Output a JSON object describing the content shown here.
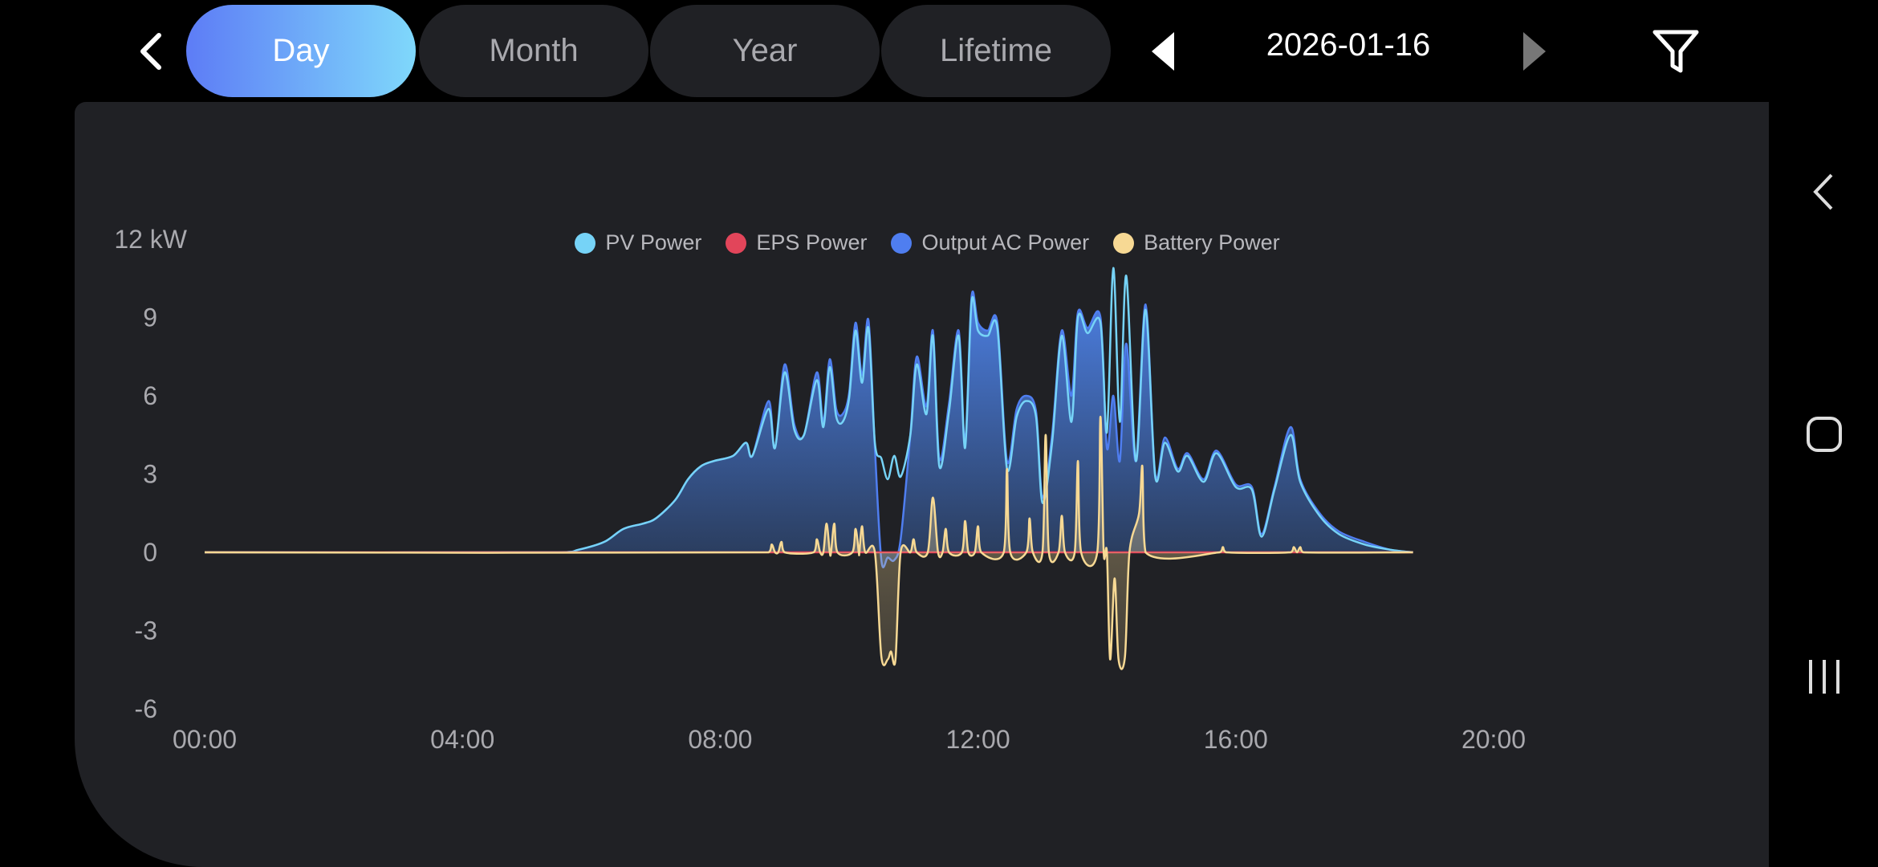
{
  "header": {
    "back_icon": "chevron-left-icon",
    "tabs": [
      {
        "label": "Day",
        "active": true
      },
      {
        "label": "Month",
        "active": false
      },
      {
        "label": "Year",
        "active": false
      },
      {
        "label": "Lifetime",
        "active": false
      }
    ],
    "date": "2026-01-16",
    "prev_icon": "triangle-left-icon",
    "next_icon": "triangle-right-icon",
    "filter_icon": "filter-icon"
  },
  "legend": [
    {
      "label": "PV Power",
      "color": "#76d3f7"
    },
    {
      "label": "EPS Power",
      "color": "#e2455a"
    },
    {
      "label": "Output AC Power",
      "color": "#4f7ef0"
    },
    {
      "label": "Battery Power",
      "color": "#f7d994"
    }
  ],
  "nav_bar": {
    "back_icon": "back-icon",
    "home_icon": "home-icon",
    "recents_icon": "recents-icon"
  },
  "chart_data": {
    "type": "area",
    "ylabel_unit": "12 kW",
    "y_ticks": [
      "12 kW",
      "9",
      "6",
      "3",
      "0",
      "-3",
      "-6"
    ],
    "y_tick_values": [
      12,
      9,
      6,
      3,
      0,
      -3,
      -6
    ],
    "x_ticks": [
      "00:00",
      "04:00",
      "08:00",
      "12:00",
      "16:00",
      "20:00"
    ],
    "x_tick_values": [
      0,
      4,
      8,
      12,
      16,
      20
    ],
    "xlim": [
      0,
      20
    ],
    "ylim": [
      -6,
      12
    ],
    "grid": false,
    "legend_position": "top",
    "series": [
      {
        "name": "Output AC Power",
        "points": [
          [
            0,
            0
          ],
          [
            5.5,
            0
          ],
          [
            5.8,
            0.1
          ],
          [
            6.2,
            0.4
          ],
          [
            6.5,
            0.9
          ],
          [
            6.8,
            1.1
          ],
          [
            7.0,
            1.3
          ],
          [
            7.3,
            2.0
          ],
          [
            7.5,
            2.8
          ],
          [
            7.7,
            3.3
          ],
          [
            7.9,
            3.5
          ],
          [
            8.2,
            3.7
          ],
          [
            8.4,
            4.2
          ],
          [
            8.5,
            3.7
          ],
          [
            8.75,
            5.8
          ],
          [
            8.85,
            4.0
          ],
          [
            9.0,
            7.2
          ],
          [
            9.15,
            4.9
          ],
          [
            9.3,
            4.5
          ],
          [
            9.5,
            6.9
          ],
          [
            9.6,
            5.0
          ],
          [
            9.7,
            7.4
          ],
          [
            9.8,
            5.5
          ],
          [
            9.9,
            5.3
          ],
          [
            10.0,
            6.1
          ],
          [
            10.1,
            8.8
          ],
          [
            10.2,
            6.8
          ],
          [
            10.3,
            8.9
          ],
          [
            10.4,
            4.0
          ],
          [
            10.5,
            -0.3
          ],
          [
            10.6,
            -0.2
          ],
          [
            10.7,
            -0.3
          ],
          [
            10.8,
            0.5
          ],
          [
            10.95,
            4.5
          ],
          [
            11.05,
            7.5
          ],
          [
            11.2,
            5.6
          ],
          [
            11.3,
            8.5
          ],
          [
            11.4,
            3.6
          ],
          [
            11.55,
            5.7
          ],
          [
            11.7,
            8.5
          ],
          [
            11.8,
            4.2
          ],
          [
            11.9,
            9.8
          ],
          [
            12.0,
            8.8
          ],
          [
            12.15,
            8.5
          ],
          [
            12.3,
            8.8
          ],
          [
            12.45,
            3.5
          ],
          [
            12.6,
            5.5
          ],
          [
            12.75,
            6.0
          ],
          [
            12.9,
            5.4
          ],
          [
            13.0,
            2.1
          ],
          [
            13.15,
            4.5
          ],
          [
            13.3,
            8.5
          ],
          [
            13.45,
            6.0
          ],
          [
            13.55,
            9.2
          ],
          [
            13.7,
            8.6
          ],
          [
            13.9,
            9.0
          ],
          [
            14.0,
            4.0
          ],
          [
            14.1,
            6.0
          ],
          [
            14.2,
            3.5
          ],
          [
            14.3,
            8.0
          ],
          [
            14.45,
            3.5
          ],
          [
            14.6,
            9.5
          ],
          [
            14.75,
            3.0
          ],
          [
            14.9,
            4.4
          ],
          [
            15.1,
            3.2
          ],
          [
            15.25,
            3.8
          ],
          [
            15.5,
            2.8
          ],
          [
            15.7,
            3.9
          ],
          [
            16.0,
            2.6
          ],
          [
            16.25,
            2.5
          ],
          [
            16.4,
            0.7
          ],
          [
            16.6,
            2.5
          ],
          [
            16.85,
            4.8
          ],
          [
            17.0,
            2.8
          ],
          [
            17.3,
            1.5
          ],
          [
            17.6,
            0.8
          ],
          [
            18.0,
            0.4
          ],
          [
            18.4,
            0.1
          ],
          [
            18.75,
            0
          ]
        ]
      },
      {
        "name": "PV Power",
        "points": [
          [
            0,
            0
          ],
          [
            5.5,
            0
          ],
          [
            5.8,
            0.1
          ],
          [
            6.2,
            0.4
          ],
          [
            6.5,
            0.9
          ],
          [
            6.8,
            1.1
          ],
          [
            7.0,
            1.3
          ],
          [
            7.3,
            2.0
          ],
          [
            7.5,
            2.8
          ],
          [
            7.7,
            3.3
          ],
          [
            7.9,
            3.5
          ],
          [
            8.2,
            3.7
          ],
          [
            8.4,
            4.2
          ],
          [
            8.5,
            3.7
          ],
          [
            8.75,
            5.5
          ],
          [
            8.85,
            4.0
          ],
          [
            9.0,
            6.9
          ],
          [
            9.15,
            4.7
          ],
          [
            9.3,
            4.5
          ],
          [
            9.5,
            6.6
          ],
          [
            9.6,
            4.8
          ],
          [
            9.7,
            7.1
          ],
          [
            9.8,
            5.2
          ],
          [
            9.9,
            5.0
          ],
          [
            10.0,
            5.9
          ],
          [
            10.1,
            8.5
          ],
          [
            10.2,
            6.5
          ],
          [
            10.3,
            8.6
          ],
          [
            10.4,
            4.2
          ],
          [
            10.5,
            3.6
          ],
          [
            10.6,
            2.8
          ],
          [
            10.7,
            3.7
          ],
          [
            10.8,
            2.9
          ],
          [
            10.95,
            4.5
          ],
          [
            11.05,
            7.2
          ],
          [
            11.2,
            5.3
          ],
          [
            11.3,
            8.3
          ],
          [
            11.4,
            3.3
          ],
          [
            11.55,
            5.4
          ],
          [
            11.7,
            8.3
          ],
          [
            11.8,
            4.0
          ],
          [
            11.9,
            9.6
          ],
          [
            12.0,
            8.5
          ],
          [
            12.15,
            8.3
          ],
          [
            12.3,
            8.6
          ],
          [
            12.45,
            3.2
          ],
          [
            12.6,
            5.2
          ],
          [
            12.75,
            5.8
          ],
          [
            12.9,
            5.2
          ],
          [
            13.0,
            1.9
          ],
          [
            13.15,
            4.2
          ],
          [
            13.3,
            8.3
          ],
          [
            13.45,
            5.0
          ],
          [
            13.55,
            9.0
          ],
          [
            13.7,
            8.4
          ],
          [
            13.9,
            8.8
          ],
          [
            14.0,
            4.6
          ],
          [
            14.1,
            10.9
          ],
          [
            14.2,
            5.0
          ],
          [
            14.3,
            10.6
          ],
          [
            14.45,
            3.5
          ],
          [
            14.6,
            9.3
          ],
          [
            14.75,
            2.9
          ],
          [
            14.9,
            4.2
          ],
          [
            15.1,
            3.1
          ],
          [
            15.25,
            3.7
          ],
          [
            15.5,
            2.7
          ],
          [
            15.7,
            3.8
          ],
          [
            16.0,
            2.5
          ],
          [
            16.25,
            2.4
          ],
          [
            16.4,
            0.6
          ],
          [
            16.6,
            2.4
          ],
          [
            16.85,
            4.5
          ],
          [
            17.0,
            2.7
          ],
          [
            17.3,
            1.4
          ],
          [
            17.6,
            0.7
          ],
          [
            18.0,
            0.3
          ],
          [
            18.4,
            0.1
          ],
          [
            18.75,
            0
          ]
        ]
      },
      {
        "name": "EPS Power",
        "points": [
          [
            0,
            0
          ],
          [
            18.75,
            0
          ]
        ]
      },
      {
        "name": "Battery Power",
        "points": [
          [
            0,
            0
          ],
          [
            8.75,
            0
          ],
          [
            8.8,
            0.3
          ],
          [
            8.85,
            0
          ],
          [
            8.9,
            0
          ],
          [
            8.95,
            0.4
          ],
          [
            9.0,
            0
          ],
          [
            9.45,
            0
          ],
          [
            9.5,
            0.5
          ],
          [
            9.55,
            0
          ],
          [
            9.6,
            0
          ],
          [
            9.65,
            1.1
          ],
          [
            9.7,
            0
          ],
          [
            9.72,
            0
          ],
          [
            9.77,
            1.1
          ],
          [
            9.82,
            0
          ],
          [
            10.05,
            0
          ],
          [
            10.1,
            0.9
          ],
          [
            10.15,
            0
          ],
          [
            10.16,
            0
          ],
          [
            10.2,
            1.0
          ],
          [
            10.25,
            0
          ],
          [
            10.4,
            0
          ],
          [
            10.5,
            -4.0
          ],
          [
            10.6,
            -4.1
          ],
          [
            10.65,
            -3.8
          ],
          [
            10.72,
            -4.1
          ],
          [
            10.8,
            0
          ],
          [
            10.95,
            0
          ],
          [
            11.0,
            0.5
          ],
          [
            11.05,
            0
          ],
          [
            11.22,
            0
          ],
          [
            11.3,
            2.1
          ],
          [
            11.38,
            0
          ],
          [
            11.45,
            0
          ],
          [
            11.5,
            0.9
          ],
          [
            11.55,
            0
          ],
          [
            11.75,
            0
          ],
          [
            11.8,
            1.2
          ],
          [
            11.85,
            0
          ],
          [
            11.95,
            0
          ],
          [
            12.0,
            1.0
          ],
          [
            12.05,
            0
          ],
          [
            12.4,
            0
          ],
          [
            12.45,
            3.2
          ],
          [
            12.5,
            0
          ],
          [
            12.75,
            0
          ],
          [
            12.8,
            1.3
          ],
          [
            12.85,
            0
          ],
          [
            13.0,
            0
          ],
          [
            13.05,
            4.5
          ],
          [
            13.1,
            0
          ],
          [
            13.25,
            0
          ],
          [
            13.3,
            1.4
          ],
          [
            13.35,
            0
          ],
          [
            13.5,
            0
          ],
          [
            13.55,
            3.5
          ],
          [
            13.6,
            0
          ],
          [
            13.85,
            0
          ],
          [
            13.9,
            5.2
          ],
          [
            13.95,
            0
          ],
          [
            14.0,
            0
          ],
          [
            14.05,
            -4.1
          ],
          [
            14.12,
            -1.0
          ],
          [
            14.18,
            -4.1
          ],
          [
            14.28,
            -4.0
          ],
          [
            14.35,
            0
          ],
          [
            14.5,
            1.5
          ],
          [
            14.55,
            3.3
          ],
          [
            14.6,
            0
          ],
          [
            15.75,
            0
          ],
          [
            15.8,
            0.2
          ],
          [
            15.85,
            0
          ],
          [
            16.85,
            0
          ],
          [
            16.9,
            0.2
          ],
          [
            16.95,
            0
          ],
          [
            17.0,
            0.2
          ],
          [
            17.05,
            0
          ],
          [
            18.75,
            0
          ]
        ]
      }
    ]
  }
}
